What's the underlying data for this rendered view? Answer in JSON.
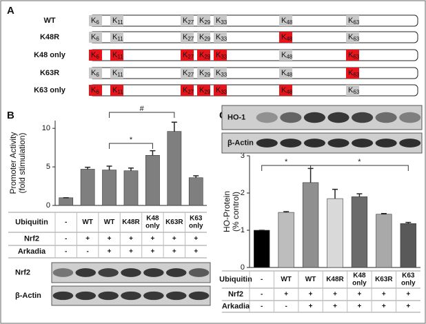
{
  "panel_a": {
    "label": "A",
    "sites": [
      {
        "letter": "K",
        "sub": "6"
      },
      {
        "letter": "K",
        "sub": "11"
      },
      {
        "letter": "K",
        "sub": "27"
      },
      {
        "letter": "K",
        "sub": "29"
      },
      {
        "letter": "K",
        "sub": "33"
      },
      {
        "letter": "K",
        "sub": "48"
      },
      {
        "letter": "K",
        "sub": "63"
      }
    ],
    "colors": {
      "native": "#c8c8c8",
      "mutated": "#e8141c"
    },
    "rows": [
      {
        "name": "WT",
        "mutated": [
          false,
          false,
          false,
          false,
          false,
          false,
          false
        ]
      },
      {
        "name": "K48R",
        "mutated": [
          false,
          false,
          false,
          false,
          false,
          true,
          false
        ]
      },
      {
        "name": "K48 only",
        "mutated": [
          true,
          true,
          true,
          true,
          true,
          false,
          true
        ]
      },
      {
        "name": "K63R",
        "mutated": [
          false,
          false,
          false,
          false,
          false,
          false,
          true
        ]
      },
      {
        "name": "K63 only",
        "mutated": [
          true,
          true,
          true,
          true,
          true,
          true,
          false
        ]
      }
    ]
  },
  "panel_b": {
    "label": "B",
    "conditions": [
      {
        "name": "Ubiquitin",
        "cells": [
          [
            "-"
          ],
          [
            "WT"
          ],
          [
            "WT"
          ],
          [
            "K48R"
          ],
          [
            "K48",
            "only"
          ],
          [
            "K63R"
          ],
          [
            "K63",
            "only"
          ]
        ]
      },
      {
        "name": "Nrf2",
        "cells": [
          [
            "-"
          ],
          [
            "+"
          ],
          [
            "+"
          ],
          [
            "+"
          ],
          [
            "+"
          ],
          [
            "+"
          ],
          [
            "+"
          ]
        ]
      },
      {
        "name": "Arkadia",
        "cells": [
          [
            "-"
          ],
          [
            "-"
          ],
          [
            "+"
          ],
          [
            "+"
          ],
          [
            "+"
          ],
          [
            "+"
          ],
          [
            "+"
          ]
        ]
      }
    ],
    "blots": [
      "Nrf2",
      "β-Actin"
    ]
  },
  "panel_c": {
    "label": "C",
    "conditions": [
      {
        "name": "Ubiquitin",
        "cells": [
          [
            "-"
          ],
          [
            "WT"
          ],
          [
            "WT"
          ],
          [
            "K48R"
          ],
          [
            "K48",
            "only"
          ],
          [
            "K63R"
          ],
          [
            "K63",
            "only"
          ]
        ]
      },
      {
        "name": "Nrf2",
        "cells": [
          [
            "-"
          ],
          [
            "+"
          ],
          [
            "+"
          ],
          [
            "+"
          ],
          [
            "+"
          ],
          [
            "+"
          ],
          [
            "+"
          ]
        ]
      },
      {
        "name": "Arkadia",
        "cells": [
          [
            "-"
          ],
          [
            "-"
          ],
          [
            "+"
          ],
          [
            "+"
          ],
          [
            "+"
          ],
          [
            "+"
          ],
          [
            "+"
          ]
        ]
      }
    ],
    "blots": [
      "HO-1",
      "β-Actin"
    ]
  },
  "chart_data": [
    {
      "type": "bar",
      "y_label": [
        "Promoter Activity",
        "(fold stimulation)"
      ],
      "values": [
        1.0,
        4.7,
        4.6,
        4.5,
        6.5,
        9.6,
        3.6
      ],
      "errors": [
        0,
        0.25,
        0.5,
        0.35,
        0.6,
        1.2,
        0.25
      ],
      "color": "#7f7f7f",
      "ylim": [
        0,
        11
      ],
      "yticks": [
        0,
        5,
        10
      ],
      "annotations": [
        "*",
        "#"
      ]
    },
    {
      "type": "bar",
      "y_label": [
        "HO-Protein",
        "(% control)"
      ],
      "values": [
        1.0,
        1.48,
        2.28,
        1.85,
        1.9,
        1.43,
        1.18
      ],
      "errors": [
        0,
        0.02,
        0.38,
        0.25,
        0.08,
        0.02,
        0.03
      ],
      "colors": [
        "#000000",
        "#bdbdbd",
        "#8f8f8f",
        "#d9d9d9",
        "#6b6b6b",
        "#a9a9a9",
        "#595959"
      ],
      "ylim": [
        0,
        3
      ],
      "yticks": [
        0,
        1,
        2,
        3
      ],
      "annotations": [
        "*",
        "*"
      ]
    }
  ]
}
